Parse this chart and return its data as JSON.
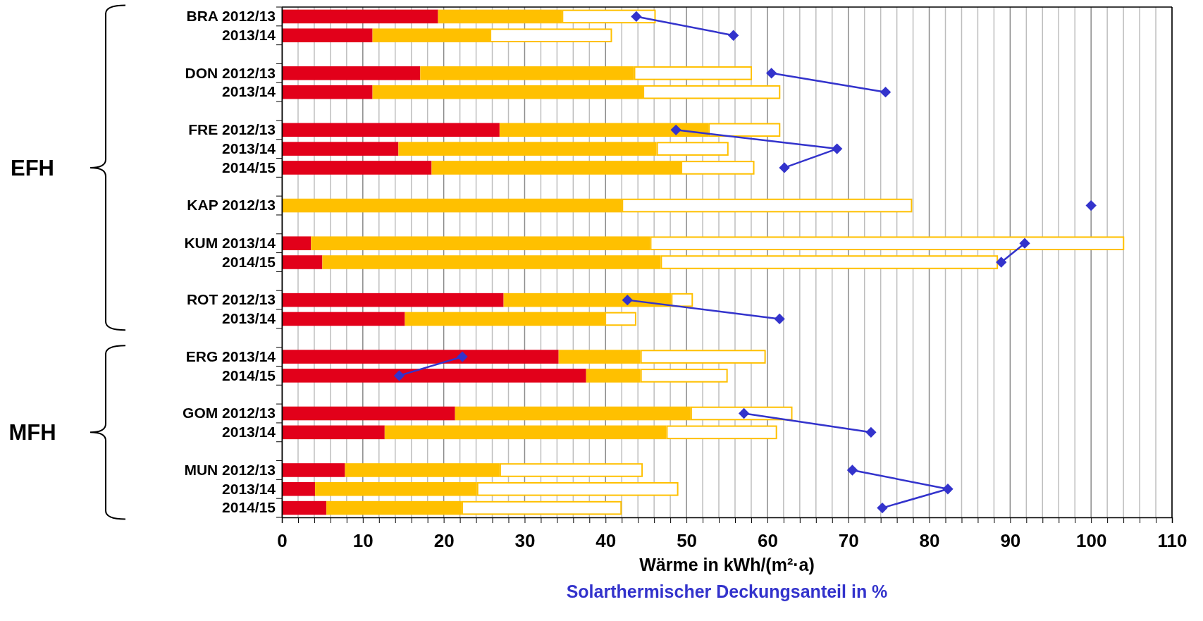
{
  "chart_data": {
    "type": "bar",
    "orientation": "horizontal",
    "stacked": true,
    "categories": [
      "BRA 2012/13",
      "2013/14",
      null,
      "DON 2012/13",
      "2013/14",
      null,
      "FRE 2012/13",
      "2013/14",
      "2014/15",
      null,
      "KAP 2012/13",
      null,
      "KUM 2013/14",
      "2014/15",
      null,
      "ROT 2012/13",
      "2013/14",
      null,
      "ERG 2013/14",
      "2014/15",
      null,
      "GOM 2012/13",
      "2013/14",
      null,
      "MUN 2012/13",
      "2013/14",
      "2014/15"
    ],
    "series": [
      {
        "color": "#e2001a",
        "values": [
          19.3,
          11.2,
          null,
          17.1,
          11.2,
          null,
          26.9,
          14.4,
          18.5,
          null,
          0,
          null,
          3.6,
          5.0,
          null,
          27.4,
          15.2,
          null,
          34.2,
          37.6,
          null,
          21.4,
          12.7,
          null,
          7.8,
          4.1,
          5.5
        ]
      },
      {
        "color": "#ffc000",
        "values": [
          15.3,
          14.5,
          null,
          26.4,
          33.4,
          null,
          25.8,
          31.9,
          30.8,
          null,
          42.0,
          null,
          41.9,
          41.8,
          null,
          20.7,
          24.7,
          null,
          10.1,
          6.7,
          null,
          29.1,
          34.8,
          null,
          19.1,
          20.0,
          16.7
        ]
      },
      {
        "color": "#ffffff",
        "values": [
          11.6,
          15.1,
          null,
          14.6,
          17.0,
          null,
          8.9,
          8.9,
          9.1,
          null,
          35.9,
          null,
          58.6,
          41.7,
          null,
          2.7,
          3.9,
          null,
          15.5,
          10.8,
          null,
          12.6,
          13.7,
          null,
          17.7,
          24.9,
          19.8
        ]
      },
      {
        "type": "line",
        "color": "#3333cc",
        "values": [
          43.8,
          55.8,
          null,
          60.5,
          74.6,
          null,
          48.7,
          68.6,
          62.1,
          null,
          100,
          null,
          91.8,
          88.9,
          null,
          42.7,
          61.5,
          null,
          22.3,
          14.5,
          null,
          57.1,
          72.8,
          null,
          70.5,
          82.3,
          74.2
        ]
      }
    ],
    "marker": "diamond",
    "xlim": [
      0,
      110
    ],
    "xticks": [
      0,
      {
        "value": 2,
        "label": null
      },
      {
        "value": 4,
        "label": null
      },
      {
        "value": 6,
        "label": null
      },
      {
        "value": 8,
        "label": null
      },
      10,
      {
        "value": 12,
        "label": null
      },
      {
        "value": 14,
        "label": null
      },
      {
        "value": 16,
        "label": null
      },
      {
        "value": 18,
        "label": null
      },
      20,
      {
        "value": 22,
        "label": null
      },
      {
        "value": 24,
        "label": null
      },
      {
        "value": 26,
        "label": null
      },
      {
        "value": 28,
        "label": null
      },
      30,
      {
        "value": 32,
        "label": null
      },
      {
        "value": 34,
        "label": null
      },
      {
        "value": 36,
        "label": null
      },
      {
        "value": 38,
        "label": null
      },
      40,
      {
        "value": 42,
        "label": null
      },
      {
        "value": 44,
        "label": null
      },
      {
        "value": 46,
        "label": null
      },
      {
        "value": 48,
        "label": null
      },
      50,
      {
        "value": 52,
        "label": null
      },
      {
        "value": 54,
        "label": null
      },
      {
        "value": 56,
        "label": null
      },
      {
        "value": 58,
        "label": null
      },
      60,
      {
        "value": 62,
        "label": null
      },
      {
        "value": 64,
        "label": null
      },
      {
        "value": 66,
        "label": null
      },
      {
        "value": 68,
        "label": null
      },
      70,
      {
        "value": 72,
        "label": null
      },
      {
        "value": 74,
        "label": null
      },
      {
        "value": 76,
        "label": null
      },
      {
        "value": 78,
        "label": null
      },
      80,
      {
        "value": 82,
        "label": null
      },
      {
        "value": 84,
        "label": null
      },
      {
        "value": 86,
        "label": null
      },
      {
        "value": 88,
        "label": null
      },
      90,
      {
        "value": 92,
        "label": null
      },
      {
        "value": 94,
        "label": null
      },
      {
        "value": 96,
        "label": null
      },
      {
        "value": 98,
        "label": null
      },
      100,
      {
        "value": 102,
        "label": null
      },
      {
        "value": 104,
        "label": null
      },
      {
        "value": 106,
        "label": null
      },
      {
        "value": 108,
        "label": null
      },
      110
    ],
    "grid": "x",
    "xlabel": "Wärme in kWh/(m²·a)",
    "annotations": [
      "EFH",
      "MFH",
      "Solarthermischer Deckungsanteil in %"
    ]
  }
}
